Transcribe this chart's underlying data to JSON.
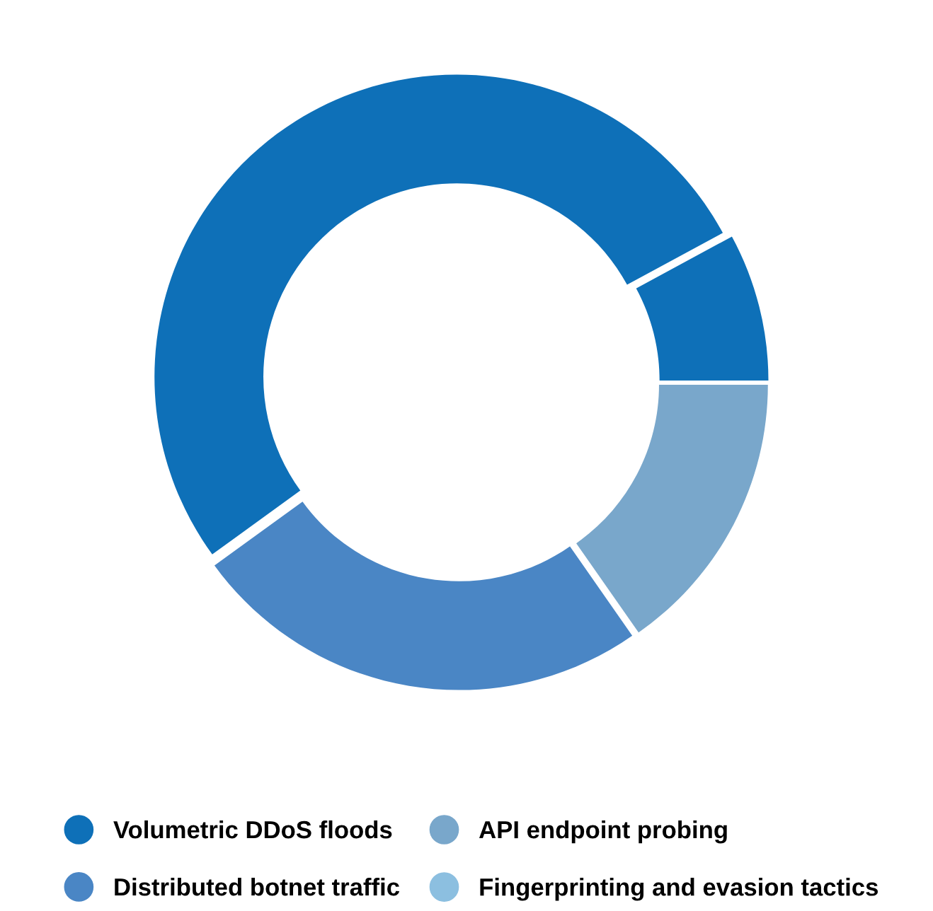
{
  "chart_data": {
    "type": "donut",
    "categories": [
      "Volumetric DDoS floods",
      null,
      "API endpoint probing",
      "Distributed botnet traffic",
      "Fingerprinting and evasion tactics"
    ],
    "values": [
      52.1,
      7.9,
      15.3,
      24.7,
      0
    ],
    "colors": [
      "#0e70b8",
      "#0e70b8",
      "#79a7cb",
      "#4a86c5",
      "#8cbfe0"
    ],
    "legend": "bottom"
  }
}
